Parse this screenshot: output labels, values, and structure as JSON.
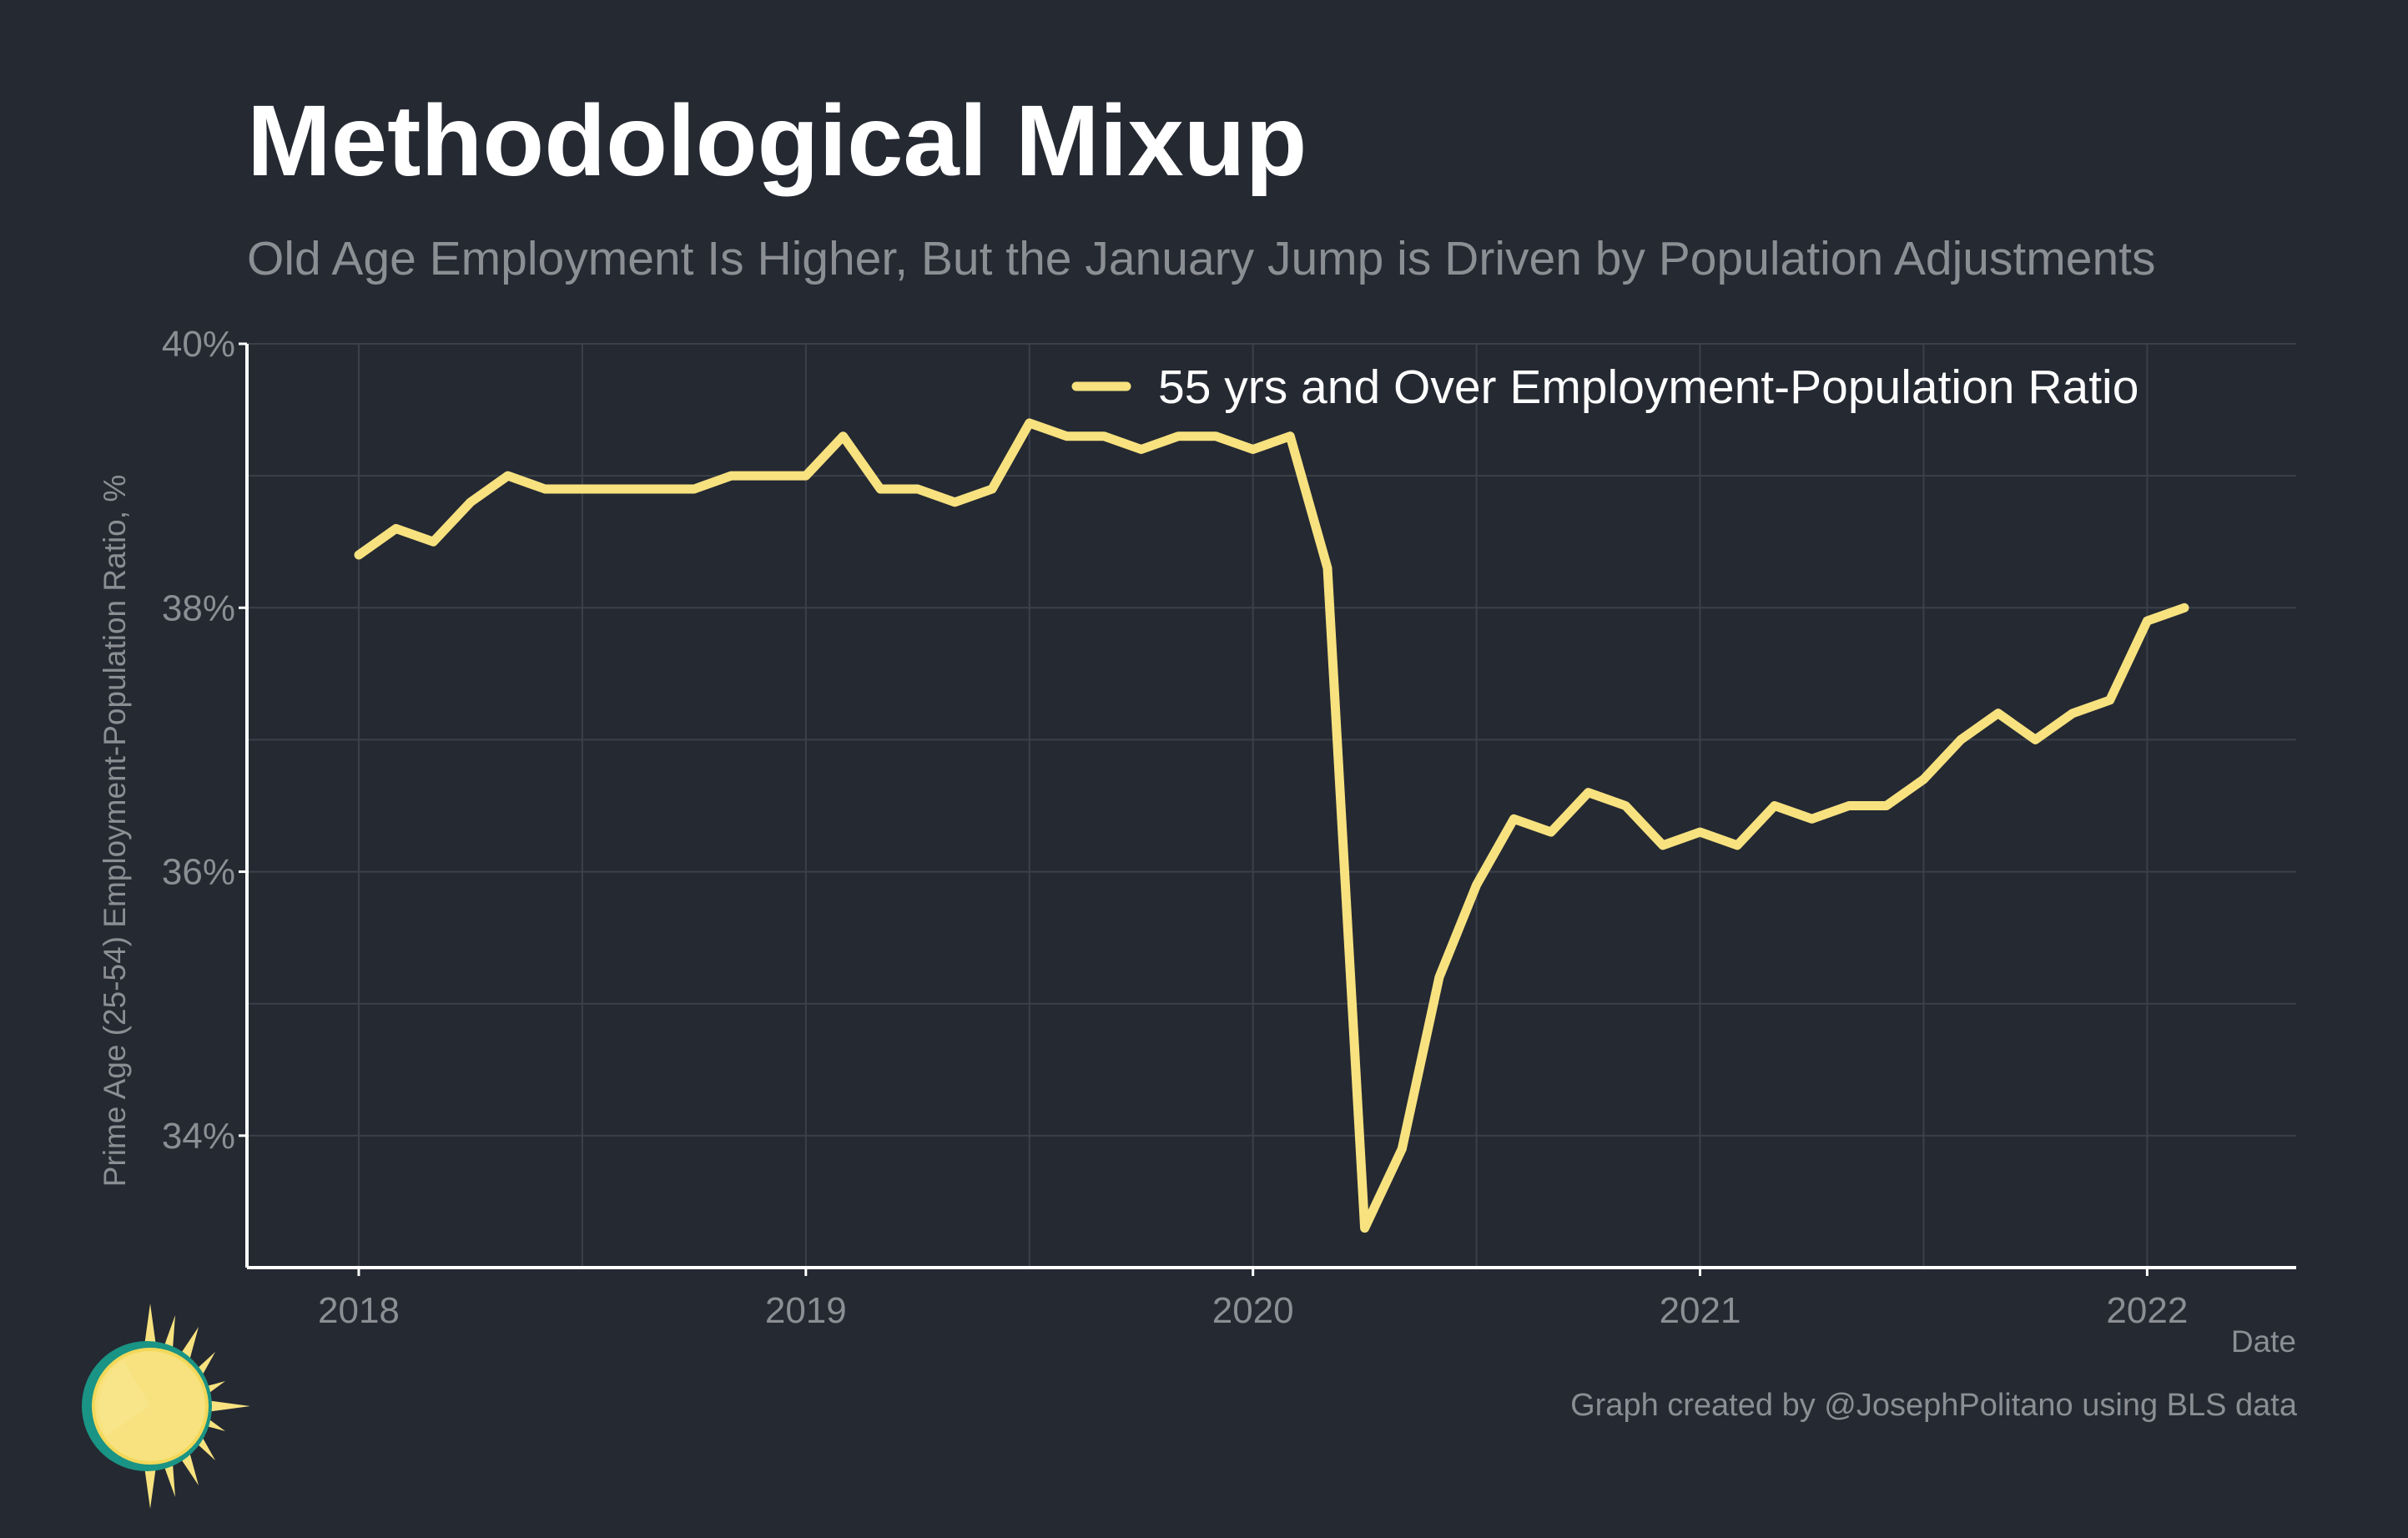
{
  "title": "Methodological Mixup",
  "subtitle": "Old Age Employment Is Higher, But the January Jump is Driven by Population Adjustments",
  "caption": "Graph created by @JosephPolitano using BLS data",
  "colors": {
    "background": "#252932",
    "line": "#f7e27f",
    "grid": "#3b404a",
    "axis": "#ffffff",
    "muted_text": "#8b8e93"
  },
  "logo_icon": "sun-logo-icon",
  "chart_data": {
    "type": "line",
    "xlabel": "Date",
    "ylabel": "Prime Age (25-54) Employment-Population Ratio, %",
    "x_ticks": [
      "2018",
      "2019",
      "2020",
      "2021",
      "2022"
    ],
    "y_ticks": [
      "34%",
      "36%",
      "38%",
      "40%"
    ],
    "y_tick_values": [
      34,
      36,
      38,
      40
    ],
    "ylim": [
      33.0,
      40.0
    ],
    "xlim": [
      "2017-10",
      "2022-05"
    ],
    "grid": true,
    "legend_position": "top-right",
    "series": [
      {
        "name": "55 yrs and Over Employment-Population Ratio",
        "x": [
          "2018-01",
          "2018-02",
          "2018-03",
          "2018-04",
          "2018-05",
          "2018-06",
          "2018-07",
          "2018-08",
          "2018-09",
          "2018-10",
          "2018-11",
          "2018-12",
          "2019-01",
          "2019-02",
          "2019-03",
          "2019-04",
          "2019-05",
          "2019-06",
          "2019-07",
          "2019-08",
          "2019-09",
          "2019-10",
          "2019-11",
          "2019-12",
          "2020-01",
          "2020-02",
          "2020-03",
          "2020-04",
          "2020-05",
          "2020-06",
          "2020-07",
          "2020-08",
          "2020-09",
          "2020-10",
          "2020-11",
          "2020-12",
          "2021-01",
          "2021-02",
          "2021-03",
          "2021-04",
          "2021-05",
          "2021-06",
          "2021-07",
          "2021-08",
          "2021-09",
          "2021-10",
          "2021-11",
          "2021-12",
          "2022-01",
          "2022-02"
        ],
        "values": [
          38.4,
          38.6,
          38.5,
          38.8,
          39.0,
          38.9,
          38.9,
          38.9,
          38.9,
          38.9,
          39.0,
          39.0,
          39.0,
          39.3,
          38.9,
          38.9,
          38.8,
          38.9,
          39.4,
          39.3,
          39.3,
          39.2,
          39.3,
          39.3,
          39.2,
          39.3,
          38.3,
          33.3,
          33.9,
          35.2,
          35.9,
          36.4,
          36.3,
          36.6,
          36.5,
          36.2,
          36.3,
          36.2,
          36.5,
          36.4,
          36.5,
          36.5,
          36.7,
          37.0,
          37.2,
          37.0,
          37.2,
          37.3,
          37.9,
          38.0
        ]
      }
    ]
  }
}
